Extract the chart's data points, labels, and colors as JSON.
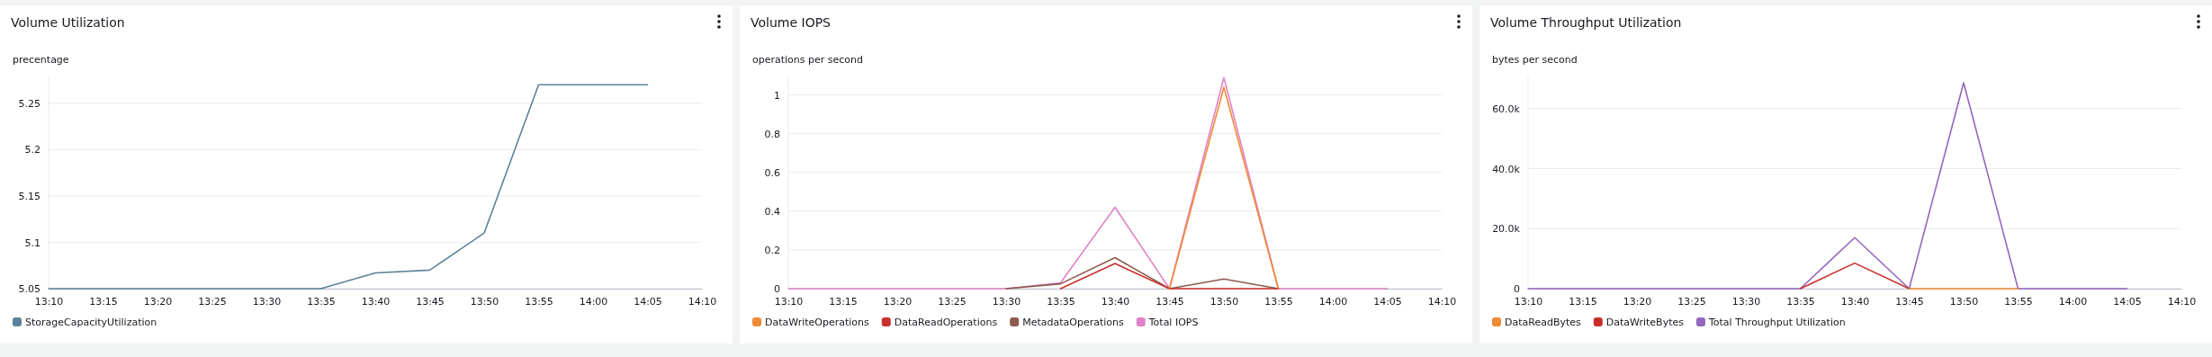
{
  "chart_data": [
    {
      "type": "line",
      "title": "Volume Utilization",
      "ylabel": "precentage",
      "categories": [
        "13:10",
        "13:15",
        "13:20",
        "13:25",
        "13:30",
        "13:35",
        "13:40",
        "13:45",
        "13:50",
        "13:55",
        "14:00",
        "14:05",
        "14:10"
      ],
      "series": [
        {
          "name": "StorageCapacityUtilization",
          "color": "#5b8397",
          "values": [
            5.05,
            5.05,
            5.05,
            5.05,
            5.05,
            5.05,
            5.067,
            5.07,
            5.11,
            5.27,
            5.27,
            5.27,
            null
          ]
        }
      ],
      "ylim": [
        5.05,
        5.28
      ],
      "yticks": [
        5.05,
        5.1,
        5.15,
        5.2,
        5.25
      ],
      "grid": "y",
      "legend": "bottom"
    },
    {
      "type": "line",
      "title": "Volume IOPS",
      "ylabel": "operations per second",
      "categories": [
        "13:10",
        "13:15",
        "13:20",
        "13:25",
        "13:30",
        "13:35",
        "13:40",
        "13:45",
        "13:50",
        "13:55",
        "14:00",
        "14:05",
        "14:10"
      ],
      "series": [
        {
          "name": "DataWriteOperations",
          "color": "#f08a35",
          "values": [
            null,
            null,
            null,
            null,
            null,
            null,
            null,
            0,
            1.04,
            0,
            null,
            null,
            null
          ]
        },
        {
          "name": "DataReadOperations",
          "color": "#c9302c",
          "values": [
            null,
            null,
            null,
            null,
            null,
            0,
            0.13,
            0,
            0,
            0,
            null,
            null,
            null
          ]
        },
        {
          "name": "MetadataOperations",
          "color": "#8c5a4f",
          "values": [
            null,
            null,
            null,
            null,
            0,
            0.025,
            0.16,
            0,
            0.05,
            0,
            null,
            null,
            null
          ]
        },
        {
          "name": "Total IOPS",
          "color": "#e082c8",
          "values": [
            0,
            0,
            0,
            0,
            0,
            0.03,
            0.42,
            0,
            1.09,
            0,
            0,
            0,
            null
          ]
        }
      ],
      "ylim": [
        0,
        1.1
      ],
      "yticks": [
        0,
        0.2,
        0.4,
        0.6,
        0.8,
        1
      ],
      "grid": "y",
      "legend": "bottom"
    },
    {
      "type": "line",
      "title": "Volume Throughput Utilization",
      "ylabel": "bytes per second",
      "categories": [
        "13:10",
        "13:15",
        "13:20",
        "13:25",
        "13:30",
        "13:35",
        "13:40",
        "13:45",
        "13:50",
        "13:55",
        "14:00",
        "14:05",
        "14:10"
      ],
      "series": [
        {
          "name": "DataReadBytes",
          "color": "#f08a35",
          "values": [
            null,
            null,
            null,
            null,
            null,
            null,
            null,
            0,
            0,
            0,
            null,
            null,
            null
          ]
        },
        {
          "name": "DataWriteBytes",
          "color": "#c9302c",
          "values": [
            null,
            null,
            null,
            null,
            null,
            0,
            8500,
            0,
            null,
            null,
            null,
            null,
            null
          ]
        },
        {
          "name": "Total Throughput Utilization",
          "color": "#9467bd",
          "values": [
            0,
            0,
            0,
            0,
            0,
            0,
            17000,
            0,
            68600,
            0,
            0,
            0,
            null
          ]
        }
      ],
      "ylim": [
        0,
        71000
      ],
      "yticks": [
        0,
        {
          "value": 20000,
          "label": "20.0k"
        },
        {
          "value": 40000,
          "label": "40.0k"
        },
        {
          "value": 60000,
          "label": "60.0k"
        }
      ],
      "grid": "y",
      "legend": "bottom"
    }
  ]
}
